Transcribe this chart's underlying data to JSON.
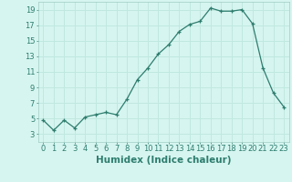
{
  "x": [
    0,
    1,
    2,
    3,
    4,
    5,
    6,
    7,
    8,
    9,
    10,
    11,
    12,
    13,
    14,
    15,
    16,
    17,
    18,
    19,
    20,
    21,
    22,
    23
  ],
  "y": [
    4.8,
    3.5,
    4.8,
    3.8,
    5.2,
    5.5,
    5.8,
    5.5,
    7.5,
    10.0,
    11.5,
    13.3,
    14.5,
    16.2,
    17.1,
    17.5,
    19.2,
    18.8,
    18.8,
    19.0,
    17.2,
    11.5,
    8.3,
    6.5
  ],
  "xlabel": "Humidex (Indice chaleur)",
  "xlim": [
    -0.5,
    23.5
  ],
  "ylim": [
    2,
    20
  ],
  "yticks": [
    3,
    5,
    7,
    9,
    11,
    13,
    15,
    17,
    19
  ],
  "xticks": [
    0,
    1,
    2,
    3,
    4,
    5,
    6,
    7,
    8,
    9,
    10,
    11,
    12,
    13,
    14,
    15,
    16,
    17,
    18,
    19,
    20,
    21,
    22,
    23
  ],
  "line_color": "#2e7d6e",
  "marker": "+",
  "bg_color": "#d6f5f0",
  "grid_color": "#c0e8e0",
  "tick_label_fontsize": 6.0,
  "xlabel_fontsize": 7.5
}
